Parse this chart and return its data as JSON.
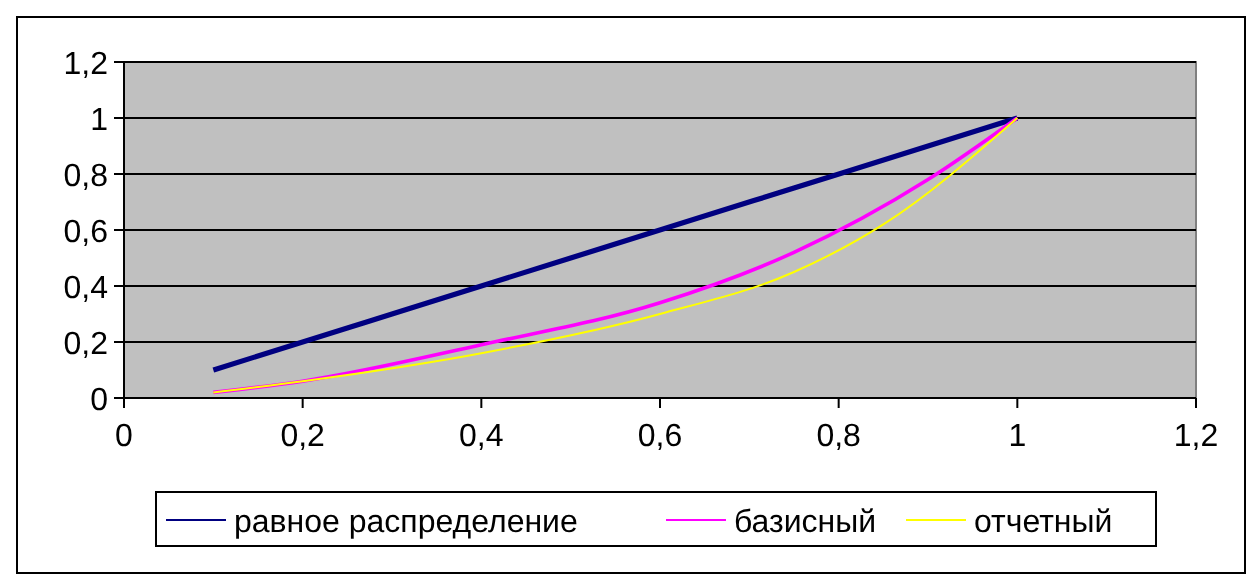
{
  "chart_data": {
    "type": "line",
    "xlim": [
      0,
      1.2
    ],
    "ylim": [
      0,
      1.2
    ],
    "xticks": [
      {
        "value": 0,
        "label": "0"
      },
      {
        "value": 0.2,
        "label": "0,2"
      },
      {
        "value": 0.4,
        "label": "0,4"
      },
      {
        "value": 0.6,
        "label": "0,6"
      },
      {
        "value": 0.8,
        "label": "0,8"
      },
      {
        "value": 1,
        "label": "1"
      },
      {
        "value": 1.2,
        "label": "1,2"
      }
    ],
    "yticks": [
      {
        "value": 0,
        "label": "0"
      },
      {
        "value": 0.2,
        "label": "0,2"
      },
      {
        "value": 0.4,
        "label": "0,4"
      },
      {
        "value": 0.6,
        "label": "0,6"
      },
      {
        "value": 0.8,
        "label": "0,8"
      },
      {
        "value": 1,
        "label": "1"
      },
      {
        "value": 1.2,
        "label": "1,2"
      }
    ],
    "grid": "y",
    "legend": "bottom",
    "marker": "none",
    "line_style": "solid",
    "series": [
      {
        "name": "равное распределение",
        "color": "#000080",
        "x": [
          0.1,
          0.25,
          0.3,
          0.5,
          0.75,
          1
        ],
        "values": [
          0.1,
          0.25,
          0.3,
          0.5,
          0.75,
          1
        ]
      },
      {
        "name": "базисный",
        "color": "#ff00ff",
        "x": [
          0.1,
          0.2,
          0.4,
          0.6,
          0.75,
          0.9,
          1
        ],
        "values": [
          0.02,
          0.06,
          0.19,
          0.34,
          0.52,
          0.78,
          1
        ]
      },
      {
        "name": "отчетный",
        "color": "#ffff00",
        "x": [
          0.1,
          0.2,
          0.4,
          0.6,
          0.75,
          0.85,
          1
        ],
        "values": [
          0.02,
          0.06,
          0.16,
          0.3,
          0.45,
          0.62,
          1
        ]
      }
    ]
  }
}
